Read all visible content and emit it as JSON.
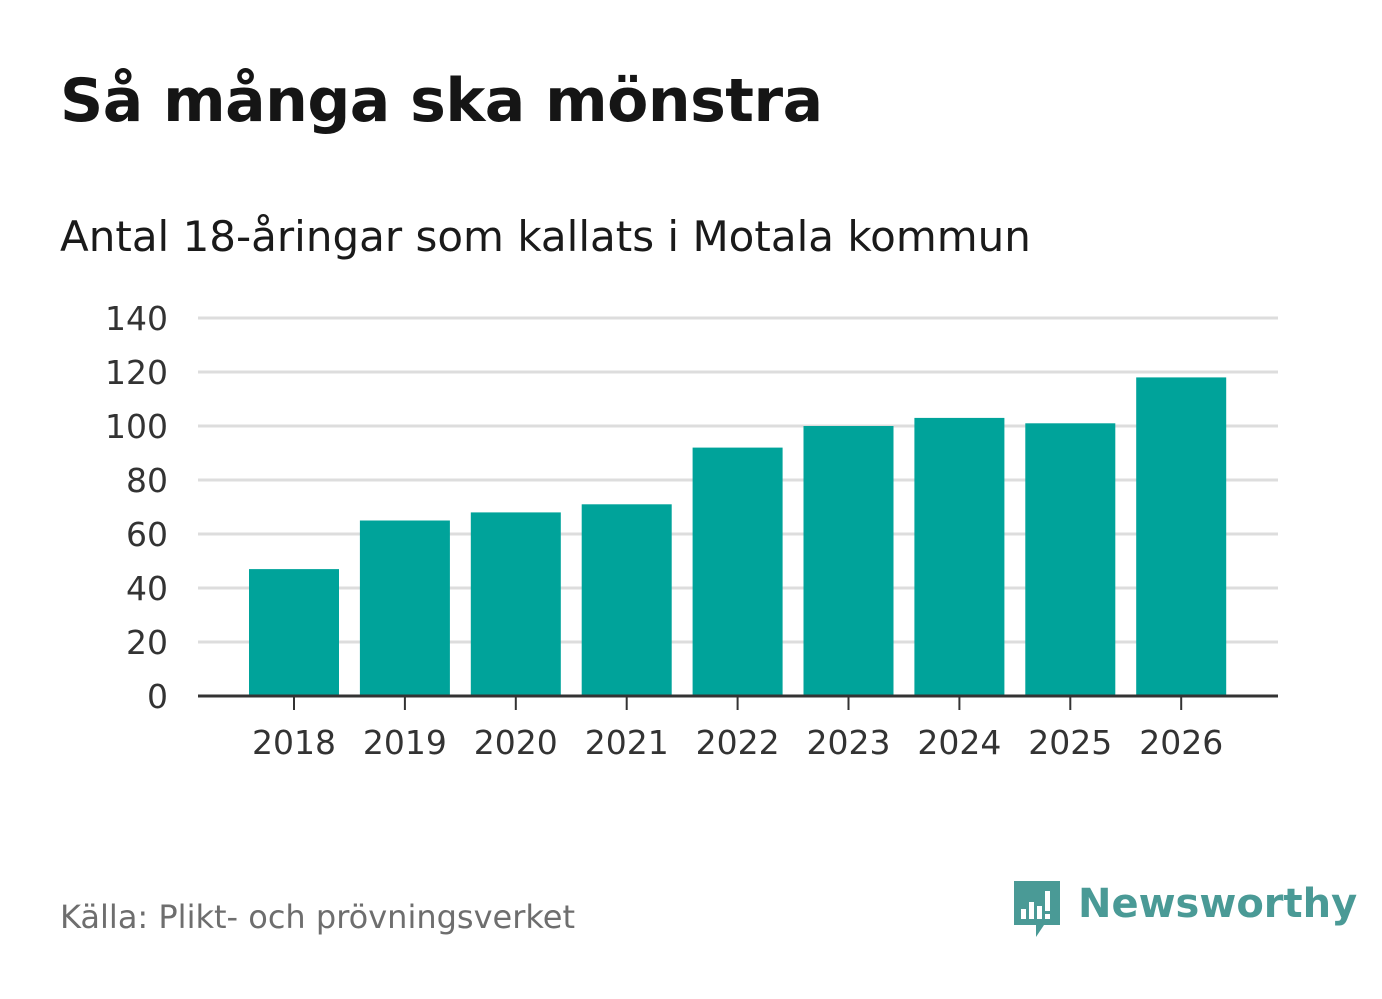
{
  "title": "Så många ska mönstra",
  "subtitle": "Antal 18-åringar som kallats i Motala kommun",
  "source": "Källa: Plikt- och prövningsverket",
  "brand": {
    "name": "Newsworthy",
    "icon": "newsworthy-logo-icon",
    "color": "#4a9a96"
  },
  "colors": {
    "bar": "#00a39a",
    "grid": "#dddddd",
    "axis": "#333333"
  },
  "chart_data": {
    "type": "bar",
    "title": "Så många ska mönstra",
    "subtitle": "Antal 18-åringar som kallats i Motala kommun",
    "xlabel": "",
    "ylabel": "",
    "categories": [
      "2018",
      "2019",
      "2020",
      "2021",
      "2022",
      "2023",
      "2024",
      "2025",
      "2026"
    ],
    "values": [
      47,
      65,
      68,
      71,
      92,
      100,
      103,
      101,
      118
    ],
    "ylim": [
      0,
      140
    ],
    "yticks": [
      0,
      20,
      40,
      60,
      80,
      100,
      120,
      140
    ],
    "grid": true,
    "legend": "none"
  }
}
